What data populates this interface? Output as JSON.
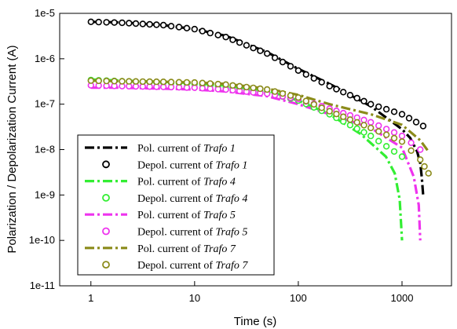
{
  "chart_data": {
    "type": "line",
    "title": "",
    "xlabel": "Time (s)",
    "ylabel": "Polarization / Depolarization Current (A)",
    "xscale": "log",
    "yscale": "log",
    "xlim": [
      0.5,
      3000
    ],
    "ylim": [
      1e-11,
      1e-05
    ],
    "x_ticks": [
      1,
      10,
      100,
      1000
    ],
    "x_tick_labels": [
      "1",
      "10",
      "100",
      "1000"
    ],
    "y_ticks": [
      1e-11,
      1e-10,
      1e-09,
      1e-08,
      1e-07,
      1e-06,
      1e-05
    ],
    "y_tick_labels": [
      "1e-11",
      "1e-10",
      "1e-9",
      "1e-8",
      "1e-7",
      "1e-6",
      "1e-5"
    ],
    "grid": false,
    "legend_position": "bottom-left",
    "series": [
      {
        "name_prefix": "Pol. current of ",
        "name_italic": "Trafo 1",
        "style": "dashdot",
        "color": "#000000",
        "x": [
          1,
          2,
          5,
          10,
          20,
          50,
          100,
          200,
          500,
          1000,
          1200,
          1400,
          1500,
          1550,
          1600
        ],
        "y": [
          6.5e-06,
          6.3e-06,
          5.5e-06,
          4.5e-06,
          3.2e-06,
          1.4e-06,
          6e-07,
          2.8e-07,
          9e-08,
          2.8e-08,
          1.8e-08,
          9e-09,
          5e-09,
          2.5e-09,
          1e-09
        ]
      },
      {
        "name_prefix": "Depol. current of ",
        "name_italic": "Trafo 1",
        "style": "circles",
        "color": "#000000",
        "x": [
          1,
          2,
          5,
          10,
          20,
          50,
          100,
          200,
          500,
          1000,
          1600
        ],
        "y": [
          6.5e-06,
          6.2e-06,
          5.5e-06,
          4.5e-06,
          3e-06,
          1.3e-06,
          5.5e-07,
          2.5e-07,
          1e-07,
          6e-08,
          3.3e-08
        ]
      },
      {
        "name_prefix": "Pol. current of ",
        "name_italic": "Trafo 4",
        "style": "dashdot",
        "color": "#33ee33",
        "x": [
          1,
          2,
          5,
          10,
          20,
          50,
          100,
          200,
          400,
          700,
          850,
          950,
          1000
        ],
        "y": [
          3.5e-07,
          3.3e-07,
          3.1e-07,
          2.9e-07,
          2.6e-07,
          2e-07,
          1.2e-07,
          6e-08,
          2.2e-08,
          7e-09,
          3e-09,
          8e-10,
          1e-10
        ]
      },
      {
        "name_prefix": "Depol. current of ",
        "name_italic": "Trafo 4",
        "style": "circles",
        "color": "#33ee33",
        "x": [
          1,
          2,
          5,
          10,
          20,
          50,
          100,
          200,
          500,
          1000
        ],
        "y": [
          3.4e-07,
          3.2e-07,
          3e-07,
          2.8e-07,
          2.4e-07,
          1.8e-07,
          1.2e-07,
          6e-08,
          2e-08,
          7e-09
        ]
      },
      {
        "name_prefix": "Pol. current of ",
        "name_italic": "Trafo 5",
        "style": "dashdot",
        "color": "#ee33ee",
        "x": [
          1,
          2,
          5,
          10,
          20,
          50,
          100,
          200,
          500,
          1000,
          1300,
          1450,
          1500
        ],
        "y": [
          2.3e-07,
          2.3e-07,
          2.2e-07,
          2.1e-07,
          1.9e-07,
          1.5e-07,
          1e-07,
          6e-08,
          3e-08,
          1.1e-08,
          2.5e-09,
          6e-10,
          1e-10
        ]
      },
      {
        "name_prefix": "Depol. current of ",
        "name_italic": "Trafo 5",
        "style": "circles",
        "color": "#ee33ee",
        "x": [
          1,
          2,
          5,
          10,
          20,
          50,
          100,
          200,
          500,
          1000,
          1500
        ],
        "y": [
          2.6e-07,
          2.5e-07,
          2.4e-07,
          2.3e-07,
          2.1e-07,
          1.7e-07,
          1.3e-07,
          8e-08,
          4e-08,
          2e-08,
          1e-08
        ]
      },
      {
        "name_prefix": "Pol. current of ",
        "name_italic": "Trafo 7",
        "style": "dashdot",
        "color": "#8b8b1a",
        "x": [
          1,
          2,
          5,
          10,
          20,
          50,
          100,
          200,
          500,
          1000,
          1500,
          1800
        ],
        "y": [
          3.3e-07,
          3.2e-07,
          3.1e-07,
          3e-07,
          2.8e-07,
          2.2e-07,
          1.6e-07,
          1e-07,
          6e-08,
          3.5e-08,
          1.6e-08,
          9e-09
        ]
      },
      {
        "name_prefix": "Depol. current of ",
        "name_italic": "Trafo 7",
        "style": "circles",
        "color": "#8b8b1a",
        "x": [
          1,
          2,
          5,
          10,
          20,
          50,
          100,
          200,
          500,
          1000,
          1500,
          1800
        ],
        "y": [
          3.3e-07,
          3.2e-07,
          3.1e-07,
          3e-07,
          2.7e-07,
          2.1e-07,
          1.4e-07,
          7e-08,
          3e-08,
          1.5e-08,
          6e-09,
          3e-09
        ]
      }
    ]
  }
}
